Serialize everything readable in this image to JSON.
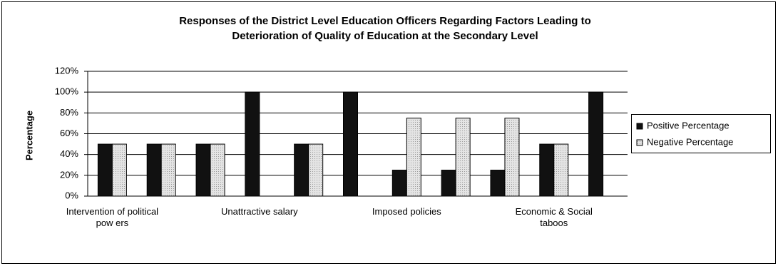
{
  "chart_data": {
    "type": "bar",
    "title": [
      "Responses of the District Level Education Officers Regarding Factors Leading to",
      "Deterioration of Quality of Education at the Secondary Level"
    ],
    "y_label": "Percentage",
    "categories": [
      "Intervention of political pow ers",
      null,
      null,
      "Unattractive salary",
      null,
      null,
      "Imposed policies",
      null,
      null,
      "Economic & Social taboos",
      null
    ],
    "series": [
      {
        "name": "Positive Percentage",
        "color": "#111111",
        "values": [
          50,
          50,
          50,
          100,
          50,
          100,
          25,
          25,
          25,
          50,
          100
        ]
      },
      {
        "name": "Negative Percentage",
        "color": "#e4e4e4",
        "values": [
          50,
          50,
          50,
          0,
          50,
          0,
          75,
          75,
          75,
          50,
          0
        ]
      }
    ],
    "ylim": [
      0,
      120
    ],
    "yticks": [
      {
        "value": 0,
        "label": "0%"
      },
      {
        "value": 20,
        "label": "20%"
      },
      {
        "value": 40,
        "label": "40%"
      },
      {
        "value": 60,
        "label": "60%"
      },
      {
        "value": 80,
        "label": "80%"
      },
      {
        "value": 100,
        "label": "100%"
      },
      {
        "value": 120,
        "label": "120%"
      }
    ],
    "grid": true,
    "legend": "right"
  }
}
